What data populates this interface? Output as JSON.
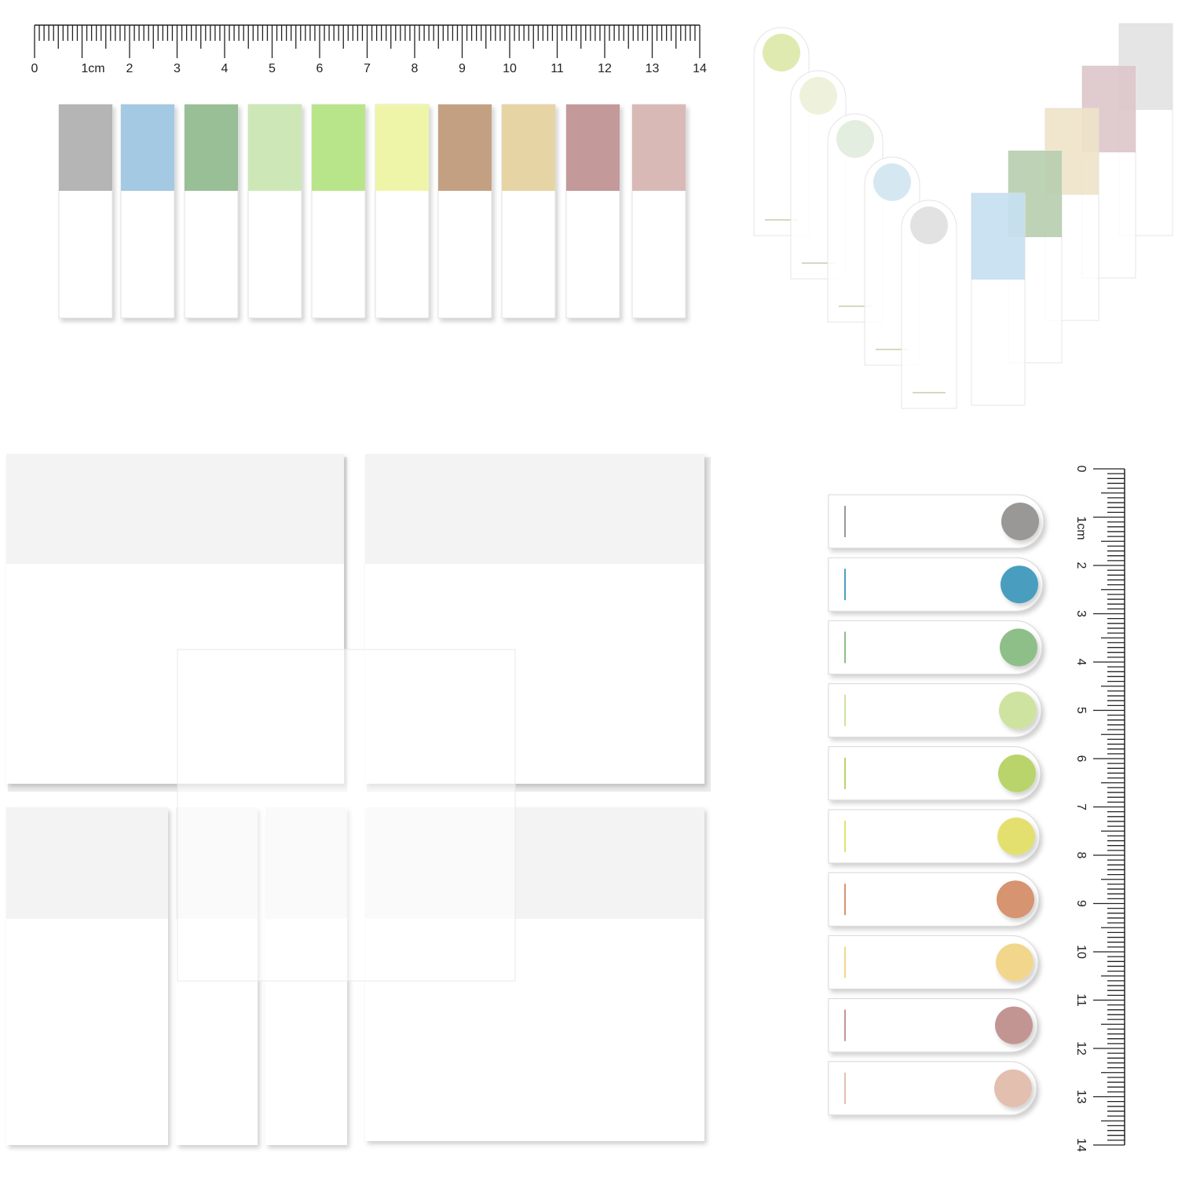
{
  "top_ruler": {
    "labels": [
      "0",
      "1cm",
      "2",
      "3",
      "4",
      "5",
      "6",
      "7",
      "8",
      "9",
      "10",
      "11",
      "12",
      "13",
      "14"
    ]
  },
  "side_ruler": {
    "labels": [
      "0",
      "1cm",
      "2",
      "3",
      "4",
      "5",
      "6",
      "7",
      "8",
      "9",
      "10",
      "11",
      "12",
      "13",
      "14"
    ]
  }
}
